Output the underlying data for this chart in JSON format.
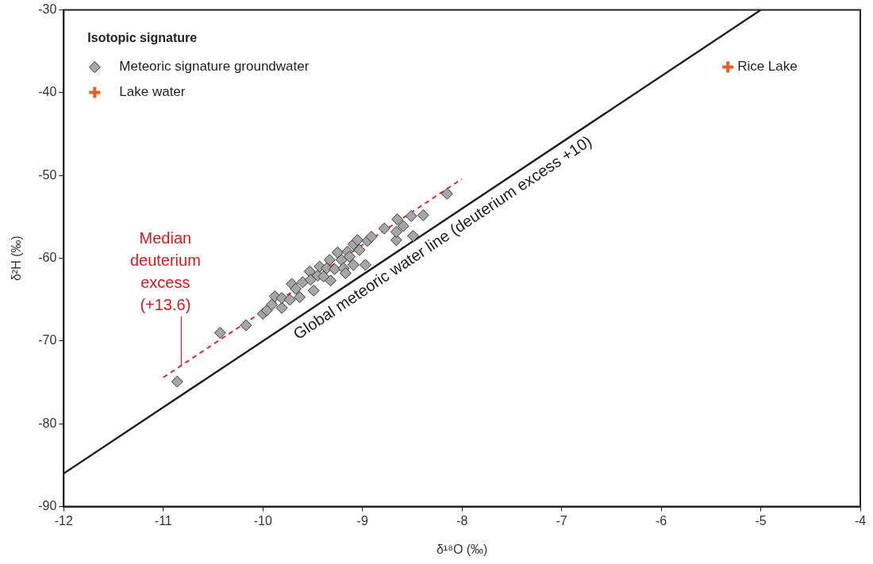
{
  "chart_data": {
    "type": "scatter",
    "xlabel": "δ¹⁸O (‰)",
    "ylabel": "δ²H (‰)",
    "legend_title": "Isotopic signature",
    "legend": "top left",
    "grid": false,
    "xlim": [
      -12,
      -4
    ],
    "xticks": [
      -12,
      -11,
      -10,
      -9,
      -8,
      -7,
      -6,
      -5,
      -4
    ],
    "ylim": [
      -90,
      -30
    ],
    "yticks": [
      -90,
      -80,
      -70,
      -60,
      -50,
      -40,
      -30
    ],
    "series": [
      {
        "name": "Meteoric signature groundwater",
        "marker": "diamond",
        "color": "#a6a6a6",
        "x": [
          -10.86,
          -10.43,
          -10.17,
          -10.0,
          -9.96,
          -9.91,
          -9.88,
          -9.81,
          -9.81,
          -9.73,
          -9.71,
          -9.67,
          -9.63,
          -9.6,
          -9.53,
          -9.52,
          -9.49,
          -9.45,
          -9.43,
          -9.39,
          -9.36,
          -9.33,
          -9.32,
          -9.28,
          -9.25,
          -9.21,
          -9.19,
          -9.17,
          -9.15,
          -9.13,
          -9.09,
          -9.09,
          -9.05,
          -9.03,
          -8.97,
          -8.95,
          -8.91,
          -8.78,
          -8.66,
          -8.66,
          -8.65,
          -8.59,
          -8.51,
          -8.49,
          -8.39,
          -8.15
        ],
        "values": [
          -74.9,
          -69.0,
          -68.1,
          -66.7,
          -66.3,
          -65.6,
          -64.6,
          -66.0,
          -64.8,
          -65.0,
          -63.1,
          -63.7,
          -64.7,
          -62.9,
          -61.6,
          -62.6,
          -63.9,
          -62.1,
          -61.0,
          -62.2,
          -61.2,
          -60.2,
          -62.7,
          -61.3,
          -59.3,
          -60.2,
          -61.2,
          -61.8,
          -59.2,
          -59.8,
          -58.3,
          -60.8,
          -57.8,
          -59.0,
          -60.8,
          -57.9,
          -57.4,
          -56.4,
          -57.8,
          -56.8,
          -55.3,
          -56.1,
          -54.9,
          -57.3,
          -54.8,
          -52.2
        ]
      },
      {
        "name": "Lake water",
        "marker": "cross",
        "color": "#f15a22",
        "x": [
          -5.33
        ],
        "values": [
          -36.9
        ]
      },
      {
        "type": "line",
        "color": "#d7191c",
        "line_style": "dashed",
        "x": [
          -11,
          -8
        ],
        "values": [
          -74.4,
          -50.4
        ]
      },
      {
        "type": "line",
        "color": "#1a1a1a",
        "line_style": "solid",
        "x": [
          -12,
          -5
        ],
        "values": [
          -86,
          -30
        ]
      }
    ],
    "annotations": [
      {
        "text": "Median deuterium excess (+13.6)",
        "x": -10.82,
        "y": -72.96
      },
      {
        "text": "Global meteoric water line (deuterium excess +10)",
        "x": -8.27,
        "y": -56.16
      },
      {
        "text": "Rice Lake",
        "x": -5.33,
        "y": -36.9
      }
    ]
  }
}
